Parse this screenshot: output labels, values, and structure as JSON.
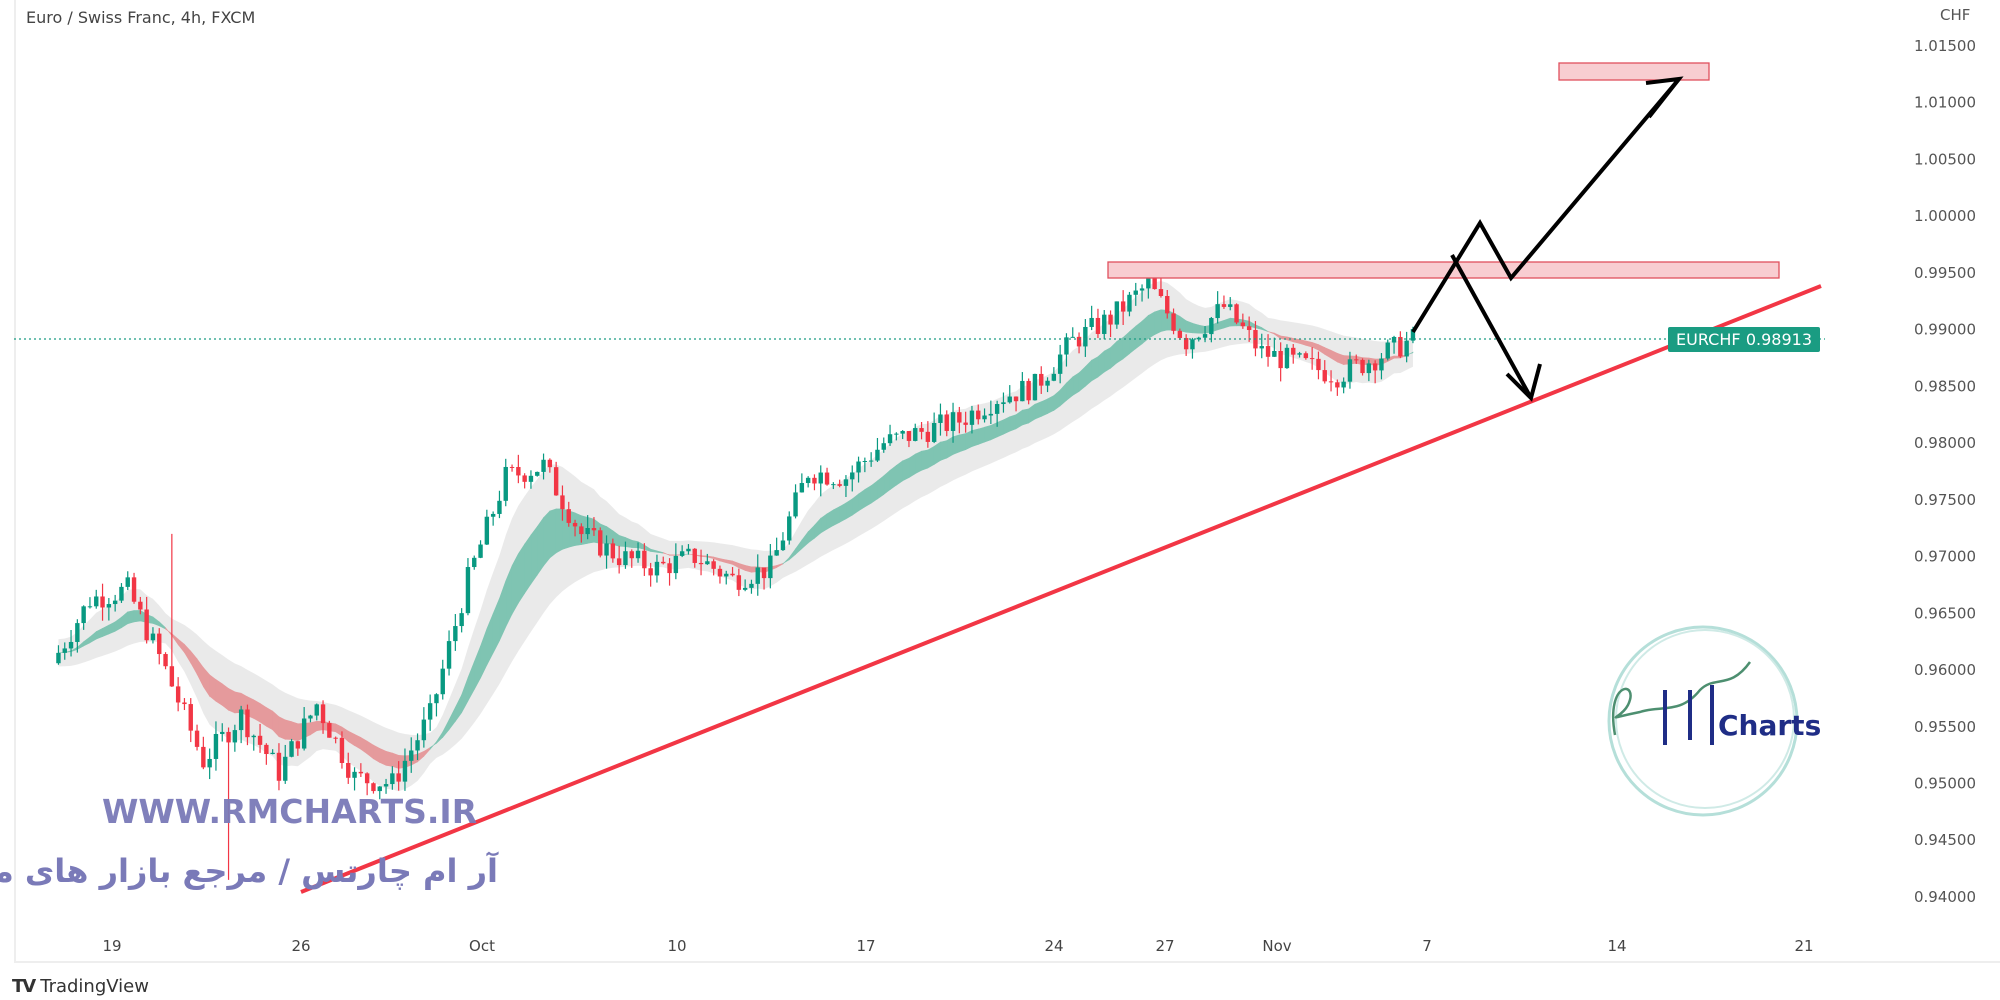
{
  "header": {
    "title": "Euro / Swiss Franc, 4h, FXCM"
  },
  "footer": {
    "brand": "TradingView"
  },
  "watermark": {
    "url": "WWW.RMCHARTS.IR",
    "persian": "آر ام چارتس / مرجع بازار های مالی",
    "logo_text": "Charts",
    "logo_letters": "RM"
  },
  "current_price": {
    "symbol": "EURCHF",
    "value": "0.98913",
    "color": "#1a9c82"
  },
  "colors": {
    "up": "#089981",
    "down": "#f23645",
    "trendline": "#f23645",
    "zone_fill": "#f8cdd1",
    "zone_border": "#e0505e",
    "ribbon_up": "#7fc4b2",
    "ribbon_down": "#e59a9c",
    "band": "#e3e3e3"
  },
  "chart_data": {
    "type": "candlestick",
    "timeframe": "4h",
    "y_unit": "CHF",
    "ylim": [
      0.9375,
      1.0175
    ],
    "y_ticks": [
      "1.01500",
      "1.01000",
      "1.00500",
      "1.00000",
      "0.99500",
      "0.99000",
      "0.98500",
      "0.98000",
      "0.97500",
      "0.97000",
      "0.96500",
      "0.96000",
      "0.95500",
      "0.95000",
      "0.94500",
      "0.94000"
    ],
    "x_ticks": [
      "19",
      "26",
      "Oct",
      "10",
      "17",
      "24",
      "27",
      "Nov",
      "7",
      "14",
      "21"
    ],
    "approx_daily_closes": [
      [
        "Sep 16",
        0.9606
      ],
      [
        "Sep 19",
        0.9662
      ],
      [
        "Sep 20",
        0.9671
      ],
      [
        "Sep 21",
        0.96
      ],
      [
        "Sep 22",
        0.952
      ],
      [
        "Sep 23",
        0.956
      ],
      [
        "Sep 26",
        0.951
      ],
      [
        "Sep 27",
        0.957
      ],
      [
        "Sep 28",
        0.9505
      ],
      [
        "Sep 29",
        0.95
      ],
      [
        "Sep 30",
        0.956
      ],
      [
        "Oct 3",
        0.968
      ],
      [
        "Oct 4",
        0.977
      ],
      [
        "Oct 5",
        0.978
      ],
      [
        "Oct 6",
        0.972
      ],
      [
        "Oct 7",
        0.97
      ],
      [
        "Oct 10",
        0.969
      ],
      [
        "Oct 11",
        0.97
      ],
      [
        "Oct 12",
        0.968
      ],
      [
        "Oct 13",
        0.969
      ],
      [
        "Oct 14",
        0.9775
      ],
      [
        "Oct 17",
        0.977
      ],
      [
        "Oct 18",
        0.98
      ],
      [
        "Oct 19",
        0.981
      ],
      [
        "Oct 20",
        0.982
      ],
      [
        "Oct 21",
        0.984
      ],
      [
        "Oct 24",
        0.985
      ],
      [
        "Oct 25",
        0.989
      ],
      [
        "Oct 26",
        0.991
      ],
      [
        "Oct 27",
        0.994
      ],
      [
        "Oct 28",
        0.989
      ],
      [
        "Oct 31",
        0.992
      ],
      [
        "Nov 1",
        0.988
      ],
      [
        "Nov 2",
        0.987
      ],
      [
        "Nov 3",
        0.986
      ],
      [
        "Nov 4",
        0.9875
      ],
      [
        "Nov 7",
        0.98913
      ]
    ],
    "annotations": {
      "resistance_zone": [
        0.9943,
        0.9957
      ],
      "target_zone": [
        1.0117,
        1.0133
      ],
      "trendline_prices": [
        0.9405,
        0.9939
      ]
    },
    "grid": false,
    "legend": "none"
  }
}
